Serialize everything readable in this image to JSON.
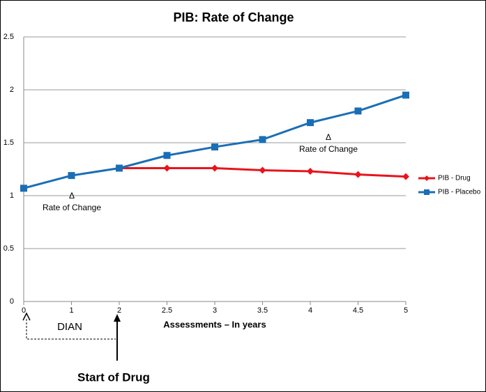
{
  "chart_data": {
    "type": "line",
    "title": "PIB: Rate of Change",
    "x_label": "Assessments – In years",
    "categories": [
      "0",
      "1",
      "2",
      "2.5",
      "3",
      "3.5",
      "4",
      "4.5",
      "5"
    ],
    "series": [
      {
        "name": "PIB - Drug",
        "color": "#e8141b",
        "marker": "diamond",
        "values": [
          null,
          null,
          1.26,
          1.26,
          1.26,
          1.24,
          1.23,
          1.2,
          1.18
        ]
      },
      {
        "name": "PIB - Placebo",
        "color": "#1a6eb6",
        "marker": "square",
        "values": [
          1.07,
          1.19,
          1.26,
          1.38,
          1.46,
          1.53,
          1.69,
          1.8,
          1.95
        ]
      }
    ],
    "ylim": [
      0,
      2.5
    ],
    "yticks": [
      0,
      0.5,
      1,
      1.5,
      2,
      2.5
    ],
    "grid": true,
    "legend": "right",
    "annotations": [
      "Δ",
      "Rate of Change",
      "Δ",
      "Rate of Change",
      "DIAN",
      "Start of Drug"
    ]
  }
}
